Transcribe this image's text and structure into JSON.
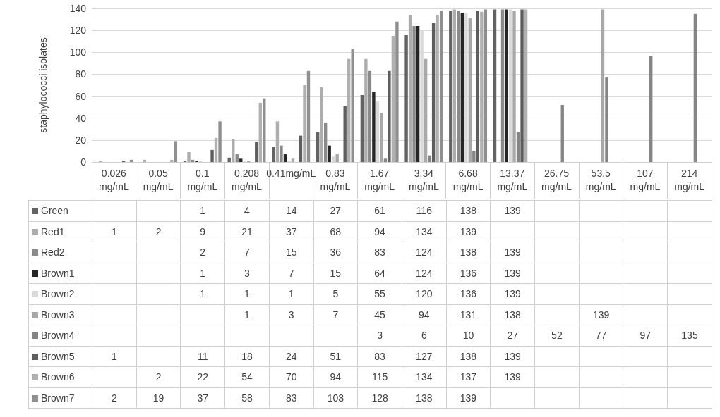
{
  "chart_data": {
    "type": "bar",
    "ylabel": "staphylococci isolates",
    "categories": [
      "0.026 mg/mL",
      "0.05 mg/mL",
      "0.1 mg/mL",
      "0.208 mg/mL",
      "0.41mg/mL",
      "0.83 mg/mL",
      "1.67 mg/mL",
      "3.34 mg/mL",
      "6.68 mg/mL",
      "13.37 mg/mL",
      "26.75 mg/mL",
      "53.5 mg/mL",
      "107 mg/mL",
      "214 mg/mL"
    ],
    "series": [
      {
        "name": "Green",
        "color": "#636363",
        "values": [
          null,
          null,
          1,
          4,
          14,
          27,
          61,
          116,
          138,
          139,
          null,
          null,
          null,
          null
        ]
      },
      {
        "name": "Red1",
        "color": "#adadad",
        "values": [
          1,
          2,
          9,
          21,
          37,
          68,
          94,
          134,
          139,
          null,
          null,
          null,
          null,
          null
        ]
      },
      {
        "name": "Red2",
        "color": "#8a8a8a",
        "values": [
          null,
          null,
          2,
          7,
          15,
          36,
          83,
          124,
          138,
          139,
          null,
          null,
          null,
          null
        ]
      },
      {
        "name": "Brown1",
        "color": "#262626",
        "values": [
          null,
          null,
          1,
          3,
          7,
          15,
          64,
          124,
          136,
          139,
          null,
          null,
          null,
          null
        ]
      },
      {
        "name": "Brown2",
        "color": "#dadada",
        "values": [
          null,
          null,
          1,
          1,
          1,
          5,
          55,
          120,
          136,
          139,
          null,
          null,
          null,
          null
        ]
      },
      {
        "name": "Brown3",
        "color": "#a8a8a8",
        "values": [
          null,
          null,
          null,
          1,
          3,
          7,
          45,
          94,
          131,
          138,
          null,
          139,
          null,
          null
        ]
      },
      {
        "name": "Brown4",
        "color": "#858585",
        "values": [
          null,
          null,
          null,
          null,
          null,
          null,
          3,
          6,
          10,
          27,
          52,
          77,
          97,
          135
        ]
      },
      {
        "name": "Brown5",
        "color": "#5e5e5e",
        "values": [
          1,
          null,
          11,
          18,
          24,
          51,
          83,
          127,
          138,
          139,
          null,
          null,
          null,
          null
        ]
      },
      {
        "name": "Brown6",
        "color": "#b0b0b0",
        "values": [
          null,
          2,
          22,
          54,
          70,
          94,
          115,
          134,
          137,
          139,
          null,
          null,
          null,
          null
        ]
      },
      {
        "name": "Brown7",
        "color": "#8f8f8f",
        "values": [
          2,
          19,
          37,
          58,
          83,
          103,
          128,
          138,
          139,
          null,
          null,
          null,
          null,
          null
        ]
      }
    ],
    "ylim": [
      0,
      140
    ],
    "yticks": [
      0,
      20,
      40,
      60,
      80,
      100,
      120,
      140
    ],
    "grid": "y",
    "legend": "bottom",
    "data_labels": true
  }
}
